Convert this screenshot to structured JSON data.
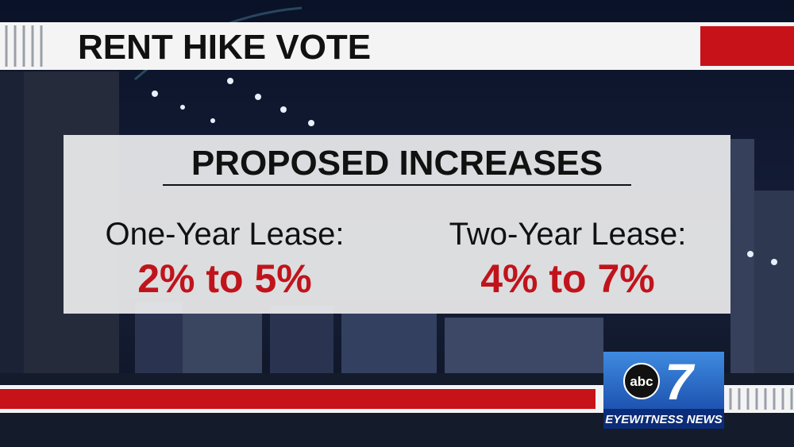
{
  "header": {
    "title": "RENT HIKE VOTE"
  },
  "panel": {
    "title": "PROPOSED INCREASES",
    "leases": [
      {
        "label": "One-Year Lease:",
        "range": "2% to 5%"
      },
      {
        "label": "Two-Year Lease:",
        "range": "4% to 7%"
      }
    ]
  },
  "logo": {
    "brand": "abc",
    "channel": "7",
    "name": "EYEWITNESS NEWS"
  }
}
